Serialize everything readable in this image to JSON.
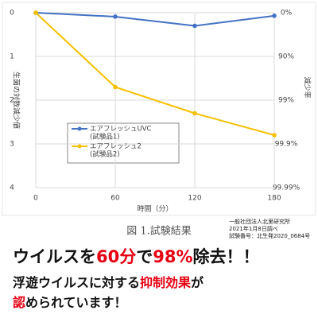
{
  "chart_data": {
    "type": "line",
    "x": [
      0,
      60,
      120,
      180
    ],
    "xlim": [
      0,
      180
    ],
    "xticks": [
      0,
      60,
      120,
      180
    ],
    "x_label": "時間（分）",
    "ylim": [
      0,
      4
    ],
    "yticks": [
      0,
      1,
      2,
      3,
      4
    ],
    "y_inverted": true,
    "y_label": "生菌の対数減少値",
    "y2lim": [
      0,
      4
    ],
    "y2ticks": [
      {
        "value": 0,
        "label": "0%"
      },
      {
        "value": 1,
        "label": "90%"
      },
      {
        "value": 2,
        "label": "99%"
      },
      {
        "value": 3,
        "label": "99.9%"
      },
      {
        "value": 4,
        "label": "99.99%"
      }
    ],
    "y2_label": "減少率",
    "grid": true,
    "series": [
      {
        "name": "エアフレッシュUVC",
        "name_note": "(試験品1)",
        "color": "#4472c4",
        "values": [
          0,
          0.09,
          0.3,
          0.07
        ]
      },
      {
        "name": "エアフレッシュ2",
        "name_note": "(試験品2)",
        "color": "#f5c000",
        "values": [
          0,
          1.7,
          2.3,
          2.8
        ]
      }
    ],
    "caption": "図 1.試験結果"
  },
  "notes": [
    "一般社団法人北里研究所",
    "2021年1月8日調べ",
    "試験番号：北生発2020_0684号"
  ],
  "headline": [
    {
      "text": "ウイルスを",
      "red": false
    },
    {
      "text": "60分",
      "red": true
    },
    {
      "text": "で",
      "red": false
    },
    {
      "text": "98%",
      "red": true
    },
    {
      "text": "除去！！",
      "red": false
    }
  ],
  "subline": [
    [
      {
        "text": "浮遊ウイルスに対する",
        "red": false
      },
      {
        "text": "抑制効果",
        "red": true
      },
      {
        "text": "が",
        "red": false
      }
    ],
    [
      {
        "text": "認",
        "red": true
      },
      {
        "text": "められています！",
        "red": false
      }
    ]
  ]
}
